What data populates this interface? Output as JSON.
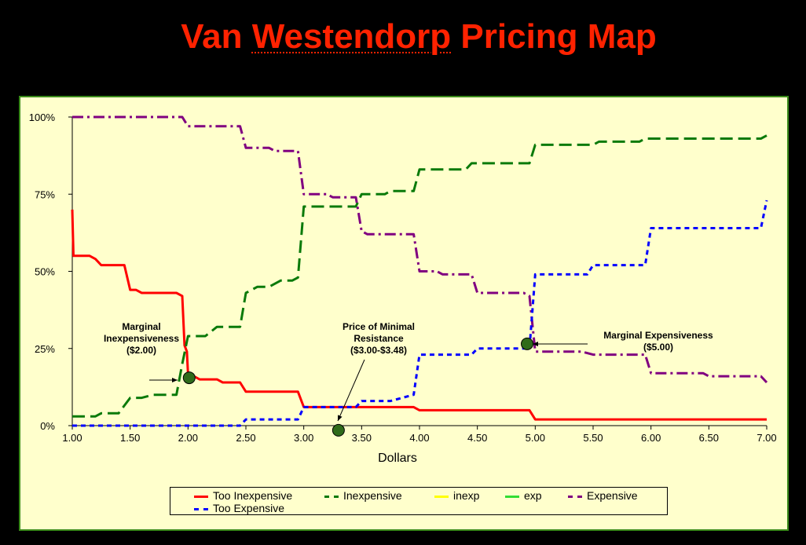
{
  "title": {
    "before": "Van ",
    "underlined": "Westendorp",
    "after": " Pricing Map"
  },
  "colors": {
    "title": "#ff2200",
    "background": "#000000",
    "panel": "#ffffcc",
    "panel_border": "#3a8a1a",
    "marker": "#2f6b1a"
  },
  "chart_data": {
    "type": "line",
    "xlabel": "Dollars",
    "ylabel": "",
    "xlim": [
      1.0,
      7.0
    ],
    "ylim": [
      0,
      100
    ],
    "x_ticks": [
      "1.00",
      "1.50",
      "2.00",
      "2.50",
      "3.00",
      "3.50",
      "4.00",
      "4.50",
      "5.00",
      "5.50",
      "6.00",
      "6.50",
      "7.00"
    ],
    "y_ticks": [
      "0%",
      "25%",
      "50%",
      "75%",
      "100%"
    ],
    "grid": false,
    "legend_position": "bottom",
    "series": [
      {
        "name": "Too Inexpensive",
        "color": "#ff0000",
        "dash": "solid",
        "points": [
          [
            1.0,
            70
          ],
          [
            1.01,
            55
          ],
          [
            1.15,
            55
          ],
          [
            1.2,
            54
          ],
          [
            1.25,
            52
          ],
          [
            1.45,
            52
          ],
          [
            1.5,
            44
          ],
          [
            1.55,
            44
          ],
          [
            1.6,
            43
          ],
          [
            1.9,
            43
          ],
          [
            1.95,
            42
          ],
          [
            1.97,
            26
          ],
          [
            1.99,
            24
          ],
          [
            2.0,
            17
          ],
          [
            2.05,
            16
          ],
          [
            2.1,
            15
          ],
          [
            2.25,
            15
          ],
          [
            2.3,
            14
          ],
          [
            2.45,
            14
          ],
          [
            2.5,
            11
          ],
          [
            2.95,
            11
          ],
          [
            3.0,
            6
          ],
          [
            3.95,
            6
          ],
          [
            4.0,
            5
          ],
          [
            4.95,
            5
          ],
          [
            5.0,
            2
          ],
          [
            7.0,
            2
          ]
        ]
      },
      {
        "name": "Inexpensive",
        "color": "#0a7a0a",
        "dash": "long",
        "points": [
          [
            1.0,
            3
          ],
          [
            1.2,
            3
          ],
          [
            1.25,
            4
          ],
          [
            1.4,
            4
          ],
          [
            1.5,
            9
          ],
          [
            1.6,
            9
          ],
          [
            1.7,
            10
          ],
          [
            1.9,
            10
          ],
          [
            1.95,
            20
          ],
          [
            2.0,
            29
          ],
          [
            2.15,
            29
          ],
          [
            2.25,
            32
          ],
          [
            2.45,
            32
          ],
          [
            2.5,
            43
          ],
          [
            2.6,
            45
          ],
          [
            2.7,
            45
          ],
          [
            2.8,
            47
          ],
          [
            2.9,
            47
          ],
          [
            2.95,
            48
          ],
          [
            3.0,
            71
          ],
          [
            3.45,
            71
          ],
          [
            3.5,
            75
          ],
          [
            3.7,
            75
          ],
          [
            3.75,
            76
          ],
          [
            3.95,
            76
          ],
          [
            4.0,
            83
          ],
          [
            4.4,
            83
          ],
          [
            4.45,
            85
          ],
          [
            4.95,
            85
          ],
          [
            5.0,
            91
          ],
          [
            5.5,
            91
          ],
          [
            5.55,
            92
          ],
          [
            5.9,
            92
          ],
          [
            5.95,
            93
          ],
          [
            6.95,
            93
          ],
          [
            7.0,
            94
          ]
        ]
      },
      {
        "name": "inexp",
        "color": "#ffff00",
        "dash": "solid",
        "points": []
      },
      {
        "name": "exp",
        "color": "#33dd33",
        "dash": "solid",
        "points": []
      },
      {
        "name": "Expensive",
        "color": "#800080",
        "dash": "dashdot",
        "points": [
          [
            1.0,
            100
          ],
          [
            1.95,
            100
          ],
          [
            2.0,
            97
          ],
          [
            2.45,
            97
          ],
          [
            2.5,
            90
          ],
          [
            2.7,
            90
          ],
          [
            2.75,
            89
          ],
          [
            2.95,
            89
          ],
          [
            3.0,
            75
          ],
          [
            3.2,
            75
          ],
          [
            3.25,
            74
          ],
          [
            3.45,
            74
          ],
          [
            3.5,
            63
          ],
          [
            3.55,
            62
          ],
          [
            3.95,
            62
          ],
          [
            4.0,
            50
          ],
          [
            4.15,
            50
          ],
          [
            4.2,
            49
          ],
          [
            4.45,
            49
          ],
          [
            4.5,
            43
          ],
          [
            4.9,
            43
          ],
          [
            4.95,
            42
          ],
          [
            5.0,
            24
          ],
          [
            5.4,
            24
          ],
          [
            5.5,
            23
          ],
          [
            5.95,
            23
          ],
          [
            6.0,
            17
          ],
          [
            6.45,
            17
          ],
          [
            6.5,
            16
          ],
          [
            6.95,
            16
          ],
          [
            7.0,
            14
          ]
        ]
      },
      {
        "name": "Too Expensive",
        "color": "#0000ff",
        "dash": "short",
        "points": [
          [
            1.0,
            0
          ],
          [
            2.45,
            0
          ],
          [
            2.5,
            2
          ],
          [
            2.95,
            2
          ],
          [
            3.0,
            6
          ],
          [
            3.45,
            6
          ],
          [
            3.5,
            8
          ],
          [
            3.75,
            8
          ],
          [
            3.85,
            9
          ],
          [
            3.95,
            10
          ],
          [
            4.0,
            23
          ],
          [
            4.45,
            23
          ],
          [
            4.5,
            25
          ],
          [
            4.95,
            25
          ],
          [
            5.0,
            49
          ],
          [
            5.45,
            49
          ],
          [
            5.5,
            52
          ],
          [
            5.95,
            52
          ],
          [
            6.0,
            64
          ],
          [
            6.95,
            64
          ],
          [
            7.0,
            73
          ]
        ]
      }
    ],
    "markers": [
      {
        "name": "marginal-inexpensiveness-point",
        "x": 2.01,
        "y": 15.5
      },
      {
        "name": "minimal-resistance-point",
        "x": 3.3,
        "y": -1.5
      },
      {
        "name": "marginal-expensiveness-point",
        "x": 4.93,
        "y": 26.5
      }
    ],
    "annotations": {
      "marginal_inexpensiveness": [
        "Marginal",
        "Inexpensiveness",
        "($2.00)"
      ],
      "minimal_resistance": [
        "Price of Minimal",
        "Resistance",
        "($3.00-$3.48)"
      ],
      "marginal_expensiveness": [
        "Marginal Expensiveness",
        "($5.00)"
      ]
    }
  }
}
